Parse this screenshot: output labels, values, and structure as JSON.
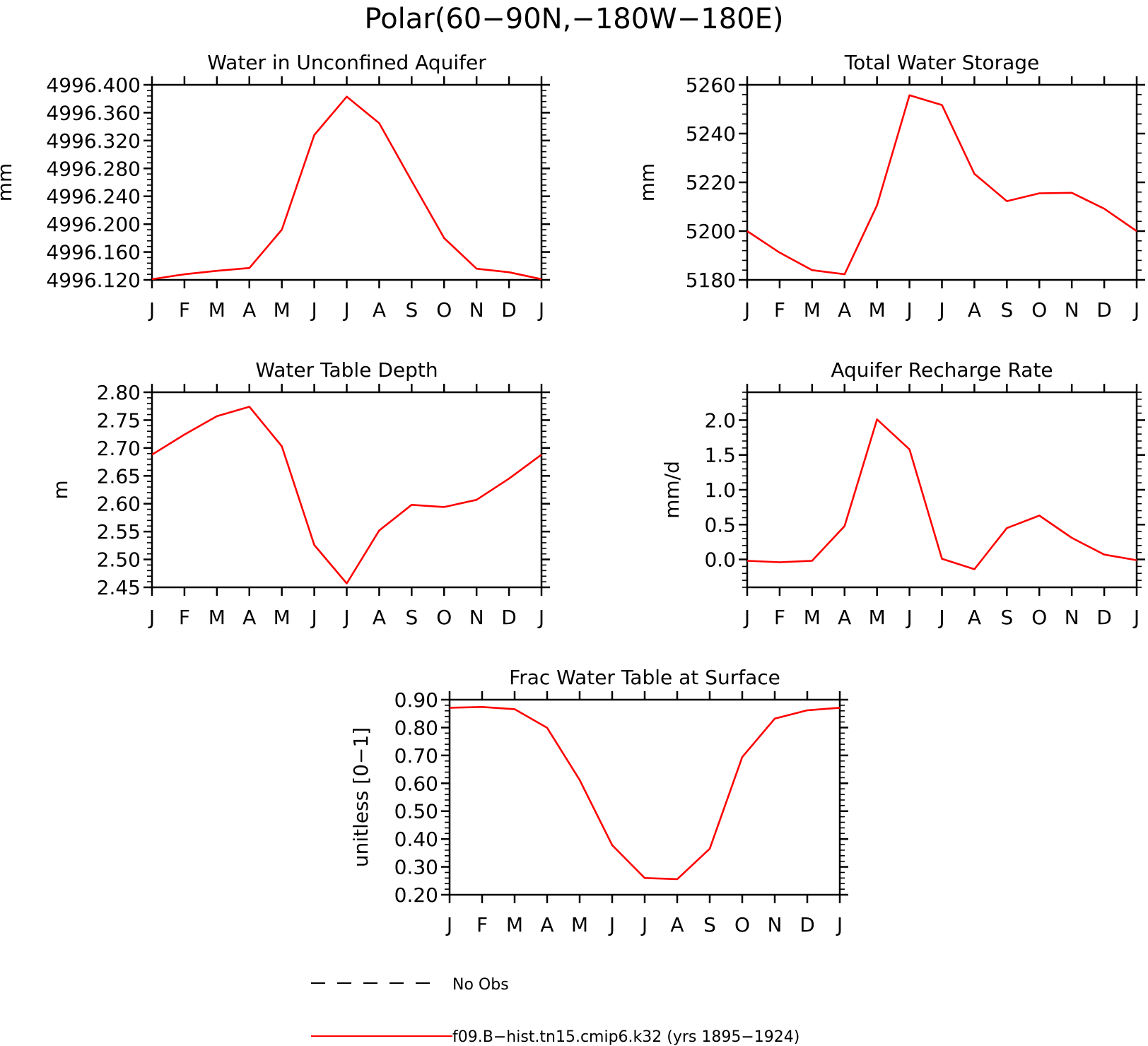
{
  "figure": {
    "title": "Polar(60−90N,−180W−180E)"
  },
  "legend": {
    "entries": [
      {
        "label": "No Obs",
        "style": "dashed",
        "color": "#000000"
      },
      {
        "label": "f09.B−hist.tn15.cmip6.k32 (yrs 1895−1924)",
        "style": "solid",
        "color": "#ff0000"
      }
    ]
  },
  "colors": {
    "series": "#ff0000",
    "axes": "#000000",
    "background": "#ffffff"
  },
  "chart_data": [
    {
      "type": "line",
      "title": "Water in Unconfined Aquifer",
      "ylabel": "mm",
      "xlabel": "",
      "categories": [
        "J",
        "F",
        "M",
        "A",
        "M",
        "J",
        "J",
        "A",
        "S",
        "O",
        "N",
        "D",
        "J"
      ],
      "ylim": [
        4996.12,
        4996.4
      ],
      "yticks": [
        4996.12,
        4996.16,
        4996.2,
        4996.24,
        4996.28,
        4996.32,
        4996.36,
        4996.4
      ],
      "ytick_labels": [
        "4996.120",
        "4996.160",
        "4996.200",
        "4996.240",
        "4996.280",
        "4996.320",
        "4996.360",
        "4996.400"
      ],
      "minor_step": 0.008,
      "grid": false,
      "series": [
        {
          "name": "f09.B−hist.tn15.cmip6.k32 (yrs 1895−1924)",
          "values": [
            4996.121,
            4996.128,
            4996.133,
            4996.137,
            4996.192,
            4996.328,
            4996.383,
            4996.345,
            4996.262,
            4996.18,
            4996.136,
            4996.131,
            4996.121
          ]
        }
      ]
    },
    {
      "type": "line",
      "title": "Total Water Storage",
      "ylabel": "mm",
      "xlabel": "",
      "categories": [
        "J",
        "F",
        "M",
        "A",
        "M",
        "J",
        "J",
        "A",
        "S",
        "O",
        "N",
        "D",
        "J"
      ],
      "ylim": [
        5180,
        5260
      ],
      "yticks": [
        5180,
        5200,
        5220,
        5240,
        5260
      ],
      "ytick_labels": [
        "5180",
        "5200",
        "5220",
        "5240",
        "5260"
      ],
      "minor_step": 4,
      "grid": false,
      "series": [
        {
          "name": "f09.B−hist.tn15.cmip6.k32 (yrs 1895−1924)",
          "values": [
            5200.0,
            5191.2,
            5184.0,
            5182.3,
            5210.6,
            5255.7,
            5251.7,
            5223.5,
            5212.3,
            5215.5,
            5215.7,
            5209.2,
            5200.0
          ]
        }
      ]
    },
    {
      "type": "line",
      "title": "Water Table Depth",
      "ylabel": "m",
      "xlabel": "",
      "categories": [
        "J",
        "F",
        "M",
        "A",
        "M",
        "J",
        "J",
        "A",
        "S",
        "O",
        "N",
        "D",
        "J"
      ],
      "ylim": [
        2.45,
        2.8
      ],
      "yticks": [
        2.45,
        2.5,
        2.55,
        2.6,
        2.65,
        2.7,
        2.75,
        2.8
      ],
      "ytick_labels": [
        "2.45",
        "2.50",
        "2.55",
        "2.60",
        "2.65",
        "2.70",
        "2.75",
        "2.80"
      ],
      "minor_step": 0.01,
      "grid": false,
      "series": [
        {
          "name": "f09.B−hist.tn15.cmip6.k32 (yrs 1895−1924)",
          "values": [
            2.688,
            2.724,
            2.757,
            2.774,
            2.703,
            2.526,
            2.457,
            2.552,
            2.598,
            2.594,
            2.607,
            2.645,
            2.688
          ]
        }
      ]
    },
    {
      "type": "line",
      "title": "Aquifer Recharge Rate",
      "ylabel": "mm/d",
      "xlabel": "",
      "categories": [
        "J",
        "F",
        "M",
        "A",
        "M",
        "J",
        "J",
        "A",
        "S",
        "O",
        "N",
        "D",
        "J"
      ],
      "ylim": [
        -0.4,
        2.4
      ],
      "yticks": [
        0.0,
        0.5,
        1.0,
        1.5,
        2.0
      ],
      "ytick_labels": [
        "0.0",
        "0.5",
        "1.0",
        "1.5",
        "2.0"
      ],
      "minor_step": 0.1,
      "grid": false,
      "series": [
        {
          "name": "f09.B−hist.tn15.cmip6.k32 (yrs 1895−1924)",
          "values": [
            -0.02,
            -0.04,
            -0.02,
            0.48,
            2.01,
            1.58,
            0.01,
            -0.14,
            0.45,
            0.63,
            0.31,
            0.07,
            -0.01
          ]
        }
      ]
    },
    {
      "type": "line",
      "title": "Frac Water Table at Surface",
      "ylabel": "unitless [0−1]",
      "xlabel": "",
      "categories": [
        "J",
        "F",
        "M",
        "A",
        "M",
        "J",
        "J",
        "A",
        "S",
        "O",
        "N",
        "D",
        "J"
      ],
      "ylim": [
        0.2,
        0.9
      ],
      "yticks": [
        0.2,
        0.3,
        0.4,
        0.5,
        0.6,
        0.7,
        0.8,
        0.9
      ],
      "ytick_labels": [
        "0.20",
        "0.30",
        "0.40",
        "0.50",
        "0.60",
        "0.70",
        "0.80",
        "0.90"
      ],
      "minor_step": 0.02,
      "grid": false,
      "series": [
        {
          "name": "f09.B−hist.tn15.cmip6.k32 (yrs 1895−1924)",
          "values": [
            0.871,
            0.874,
            0.866,
            0.799,
            0.612,
            0.378,
            0.26,
            0.256,
            0.365,
            0.694,
            0.832,
            0.862,
            0.871
          ]
        }
      ]
    }
  ]
}
